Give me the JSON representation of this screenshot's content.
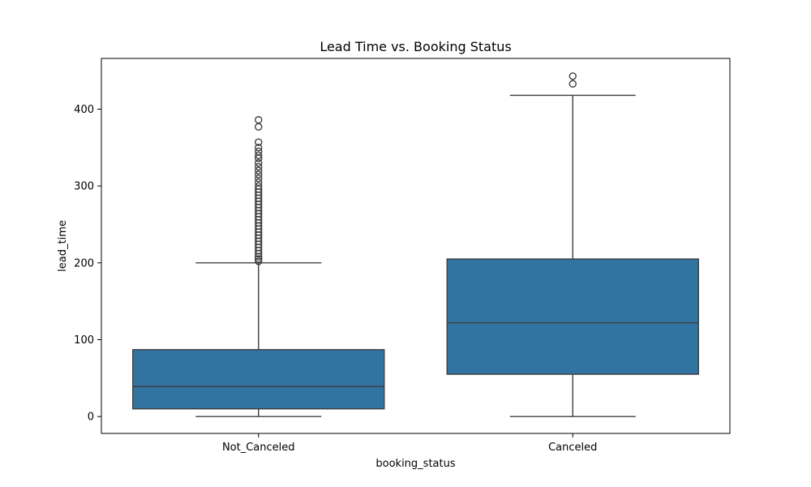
{
  "chart_data": {
    "type": "box",
    "title": "Lead Time vs. Booking Status",
    "xlabel": "booking_status",
    "ylabel": "lead_time",
    "ylim": [
      -22,
      466
    ],
    "yticks": [
      0,
      100,
      200,
      300,
      400
    ],
    "grid": false,
    "legend": "none",
    "box_color": "#3274a1",
    "categories": [
      "Not_Canceled",
      "Canceled"
    ],
    "boxes": [
      {
        "category": "Not_Canceled",
        "min": 0,
        "q1": 10,
        "median": 39,
        "q3": 87,
        "max": 200,
        "outliers": [
          202,
          205,
          208,
          212,
          216,
          220,
          224,
          228,
          232,
          236,
          240,
          244,
          248,
          252,
          256,
          260,
          264,
          268,
          272,
          276,
          280,
          284,
          288,
          292,
          296,
          300,
          305,
          310,
          315,
          320,
          325,
          330,
          336,
          340,
          345,
          350,
          357,
          377,
          386
        ]
      },
      {
        "category": "Canceled",
        "min": 0,
        "q1": 55,
        "median": 122,
        "q3": 205,
        "max": 418,
        "outliers": [
          433,
          443
        ]
      }
    ]
  }
}
